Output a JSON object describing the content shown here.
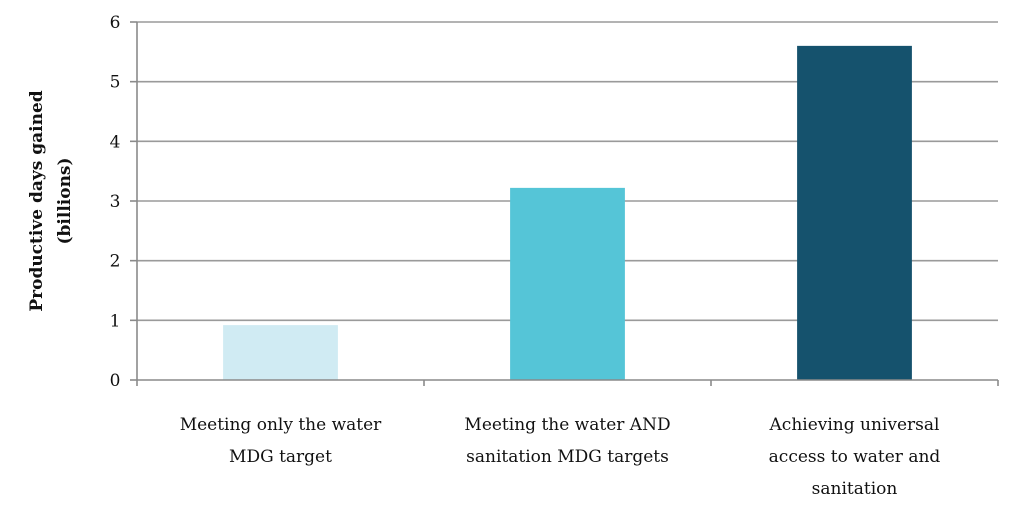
{
  "chart_data": {
    "type": "bar",
    "categories": [
      [
        "Meeting only the water",
        "MDG target"
      ],
      [
        "Meeting the water AND",
        "sanitation MDG targets"
      ],
      [
        "Achieving universal",
        "access to water and",
        "sanitation"
      ]
    ],
    "values": [
      0.92,
      3.22,
      5.6
    ],
    "bar_colors": [
      "#d0ebf3",
      "#55c5d7",
      "#15526d"
    ],
    "ylabel": [
      "Productive days gained",
      "(billions)"
    ],
    "ylim": [
      0,
      6
    ],
    "yticks": [
      "0",
      "1",
      "2",
      "3",
      "4",
      "5",
      "6"
    ],
    "grid": true,
    "legend": "none"
  }
}
